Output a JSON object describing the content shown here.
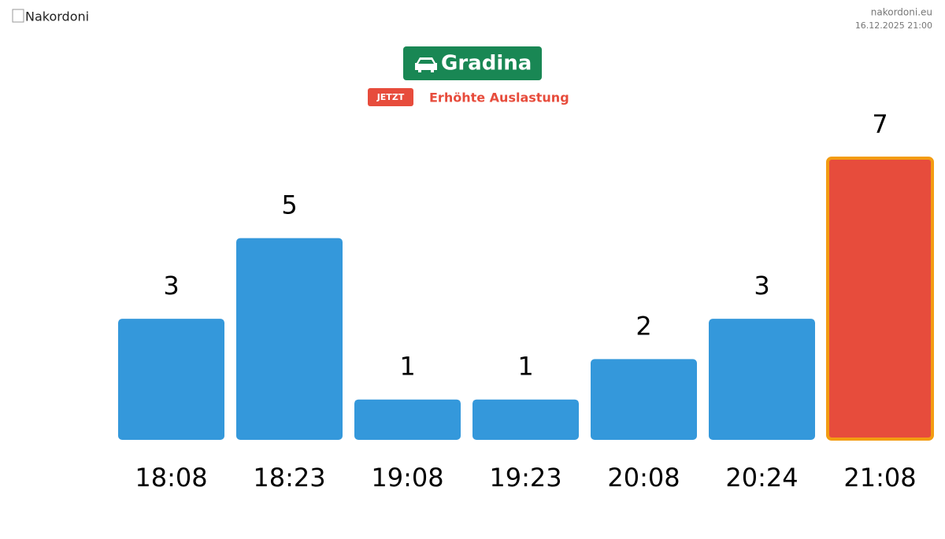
{
  "header": {
    "logo_alt": "Nakordoni",
    "site": "nakordoni.eu",
    "datetime": "16.12.2025 21:00"
  },
  "badge": {
    "title": "Gradina",
    "color": "#198754"
  },
  "status": {
    "tag": "JETZT",
    "text": "Erhöhte Auslastung",
    "color": "#e74c3c"
  },
  "chart_data": {
    "type": "bar",
    "categories": [
      "18:08",
      "18:23",
      "19:08",
      "19:23",
      "20:08",
      "20:24",
      "21:08"
    ],
    "values": [
      3,
      5,
      1,
      1,
      2,
      3,
      7
    ],
    "colors": [
      "#3498db",
      "#3498db",
      "#3498db",
      "#3498db",
      "#3498db",
      "#3498db",
      "#e74c3c"
    ],
    "border_colors": [
      null,
      null,
      null,
      null,
      null,
      null,
      "#f39c12"
    ]
  }
}
